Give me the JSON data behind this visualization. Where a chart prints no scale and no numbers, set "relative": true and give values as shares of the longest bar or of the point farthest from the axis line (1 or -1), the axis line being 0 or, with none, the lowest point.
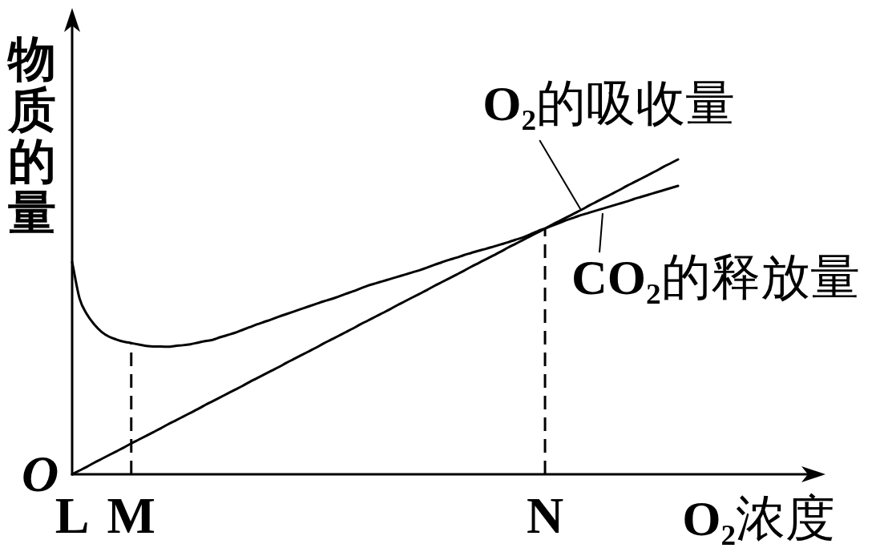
{
  "chart_data": {
    "type": "line",
    "relative": true,
    "xlabel": "O₂浓度",
    "ylabel": "物质的量",
    "categories": [
      "L",
      null,
      null,
      null,
      null,
      null,
      null,
      null,
      "M",
      null,
      null,
      null,
      null,
      null,
      null,
      null,
      null,
      null,
      null,
      null,
      null,
      null,
      null,
      null,
      null,
      null,
      null,
      null,
      null,
      null,
      null,
      null,
      null,
      null,
      null,
      null,
      null,
      null,
      null,
      null,
      null,
      null,
      null,
      null,
      null,
      null,
      null,
      null,
      null,
      null,
      null,
      null,
      null,
      null,
      null,
      null,
      null,
      null,
      null,
      null,
      null,
      null,
      null,
      null,
      "N",
      null,
      null,
      null,
      null,
      null,
      null,
      null,
      null,
      null,
      null,
      null,
      null,
      null,
      null,
      null,
      null,
      null,
      null
    ],
    "series": [
      {
        "name": "O₂的吸收量",
        "color": "#000000",
        "values": [
          0,
          0.012,
          0.024,
          0.037,
          0.049,
          0.061,
          0.073,
          0.085,
          0.098,
          0.11,
          0.122,
          0.134,
          0.146,
          0.159,
          0.171,
          0.183,
          0.195,
          0.207,
          0.22,
          0.232,
          0.244,
          0.256,
          0.268,
          0.28,
          0.293,
          0.305,
          0.317,
          0.329,
          0.341,
          0.354,
          0.366,
          0.378,
          0.39,
          0.402,
          0.415,
          0.427,
          0.439,
          0.451,
          0.463,
          0.476,
          0.488,
          0.5,
          0.512,
          0.524,
          0.537,
          0.549,
          0.561,
          0.573,
          0.585,
          0.598,
          0.61,
          0.622,
          0.634,
          0.646,
          0.659,
          0.671,
          0.683,
          0.695,
          0.707,
          0.72,
          0.732,
          0.744,
          0.756,
          0.768,
          0.78,
          0.793,
          0.805,
          0.817,
          0.829,
          0.841,
          0.854,
          0.866,
          0.878,
          0.89,
          0.902,
          0.915,
          0.927,
          0.939,
          0.951,
          0.963,
          0.976,
          0.988,
          1
        ]
      },
      {
        "name": "CO₂的释放量",
        "color": "#000000",
        "values": [
          0.674,
          0.559,
          0.508,
          0.476,
          0.452,
          0.437,
          0.428,
          0.421,
          0.417,
          0.412,
          0.408,
          0.406,
          0.406,
          0.405,
          0.408,
          0.41,
          0.413,
          0.418,
          0.423,
          0.427,
          0.435,
          0.442,
          0.449,
          0.458,
          0.467,
          0.476,
          0.484,
          0.492,
          0.501,
          0.509,
          0.517,
          0.525,
          0.533,
          0.541,
          0.549,
          0.556,
          0.564,
          0.573,
          0.581,
          0.59,
          0.599,
          0.606,
          0.613,
          0.62,
          0.627,
          0.634,
          0.641,
          0.648,
          0.656,
          0.665,
          0.673,
          0.681,
          0.688,
          0.696,
          0.703,
          0.71,
          0.716,
          0.723,
          0.73,
          0.737,
          0.745,
          0.752,
          0.762,
          0.772,
          0.781,
          0.79,
          0.799,
          0.808,
          0.816,
          0.824,
          0.831,
          0.838,
          0.845,
          0.852,
          0.859,
          0.866,
          0.874,
          0.881,
          0.888,
          0.895,
          0.902,
          0.909,
          0.916
        ]
      }
    ],
    "ref_lines": [
      {
        "axis": "x",
        "value": "M",
        "line_style": "dashed"
      },
      {
        "axis": "x",
        "value": "N",
        "line_style": "dashed"
      }
    ],
    "annotations": [
      {
        "text": "O",
        "x": "L",
        "y": 0
      }
    ]
  }
}
